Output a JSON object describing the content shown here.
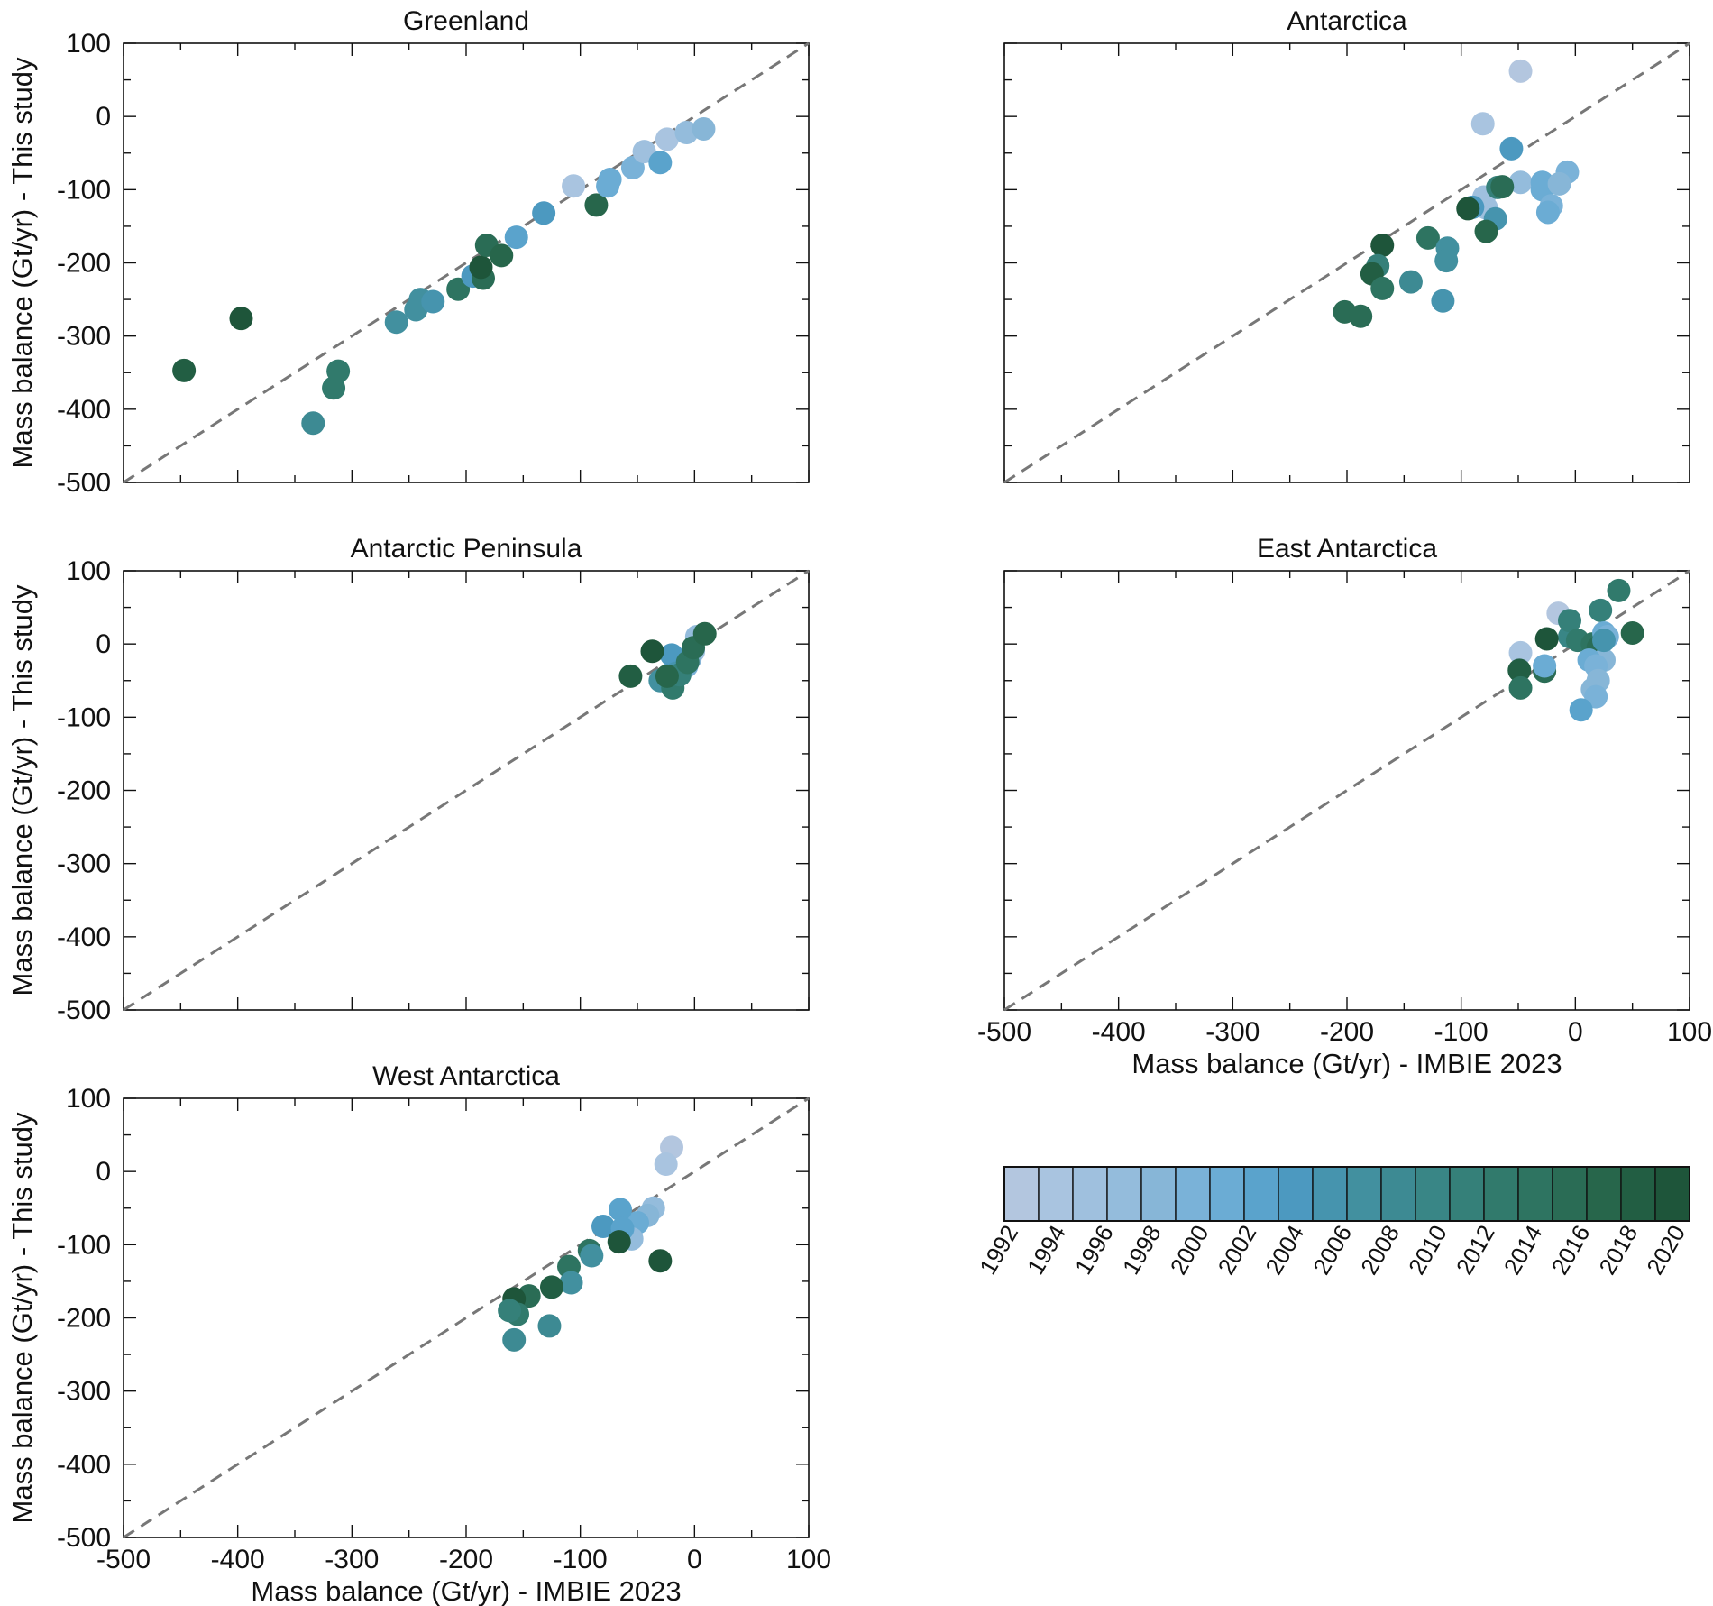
{
  "colormap": {
    "years": [
      "1992",
      "1994",
      "1996",
      "1998",
      "2000",
      "2002",
      "2004",
      "2006",
      "2008",
      "2010",
      "2012",
      "2014",
      "2016",
      "2018",
      "2020"
    ],
    "colors": [
      "#b3c6df",
      "#a9c4e0",
      "#9fc0de",
      "#94bcdc",
      "#87b6d7",
      "#7ab2d8",
      "#6bacd4",
      "#5aa3cc",
      "#4c99c0",
      "#4694ae",
      "#42909f",
      "#3d8a93",
      "#398686",
      "#358079",
      "#317a6c",
      "#2e7461",
      "#2a6c55",
      "#27664b",
      "#225e43",
      "#1e553a"
    ]
  },
  "chart_data": [
    {
      "type": "scatter",
      "title": "Greenland",
      "xlabel": "",
      "ylabel": "Mass balance (Gt/yr) - This study",
      "xlim": [
        -500,
        100
      ],
      "ylim": [
        -500,
        100
      ],
      "xticks": [],
      "yticks": [
        "100",
        "0",
        "-100",
        "-200",
        "-300",
        "-400",
        "-500"
      ],
      "reference_line": "1:1",
      "points": [
        {
          "x": -447,
          "y": -347,
          "c": 0.95
        },
        {
          "x": -397,
          "y": -276,
          "c": 1.0
        },
        {
          "x": -334,
          "y": -419,
          "c": 0.6
        },
        {
          "x": -316,
          "y": -371,
          "c": 0.72
        },
        {
          "x": -312,
          "y": -348,
          "c": 0.75
        },
        {
          "x": -261,
          "y": -281,
          "c": 0.55
        },
        {
          "x": -244,
          "y": -264,
          "c": 0.5
        },
        {
          "x": -240,
          "y": -250,
          "c": 0.5
        },
        {
          "x": -229,
          "y": -253,
          "c": 0.48
        },
        {
          "x": -207,
          "y": -236,
          "c": 0.78
        },
        {
          "x": -194,
          "y": -218,
          "c": 0.42
        },
        {
          "x": -185,
          "y": -221,
          "c": 0.85
        },
        {
          "x": -187,
          "y": -206,
          "c": 1.0
        },
        {
          "x": -182,
          "y": -176,
          "c": 0.82
        },
        {
          "x": -169,
          "y": -190,
          "c": 0.88
        },
        {
          "x": -156,
          "y": -165,
          "c": 0.38
        },
        {
          "x": -132,
          "y": -132,
          "c": 0.4
        },
        {
          "x": -106,
          "y": -95,
          "c": 0.05
        },
        {
          "x": -86,
          "y": -121,
          "c": 0.9
        },
        {
          "x": -76,
          "y": -95,
          "c": 0.3
        },
        {
          "x": -74,
          "y": -86,
          "c": 0.3
        },
        {
          "x": -54,
          "y": -70,
          "c": 0.25
        },
        {
          "x": -44,
          "y": -48,
          "c": 0.12
        },
        {
          "x": -30,
          "y": -63,
          "c": 0.35
        },
        {
          "x": -24,
          "y": -31,
          "c": 0.05
        },
        {
          "x": -7,
          "y": -22,
          "c": 0.15
        },
        {
          "x": 8,
          "y": -17,
          "c": 0.2
        }
      ]
    },
    {
      "type": "scatter",
      "title": "Antarctica",
      "xlabel": "",
      "ylabel": "",
      "xlim": [
        -500,
        100
      ],
      "ylim": [
        -500,
        100
      ],
      "xticks": [],
      "yticks": [],
      "reference_line": "1:1",
      "points": [
        {
          "x": -48,
          "y": 62,
          "c": 0.0
        },
        {
          "x": -81,
          "y": -10,
          "c": 0.05
        },
        {
          "x": -56,
          "y": -44,
          "c": 0.42
        },
        {
          "x": -48,
          "y": -90,
          "c": 0.15
        },
        {
          "x": -29,
          "y": -90,
          "c": 0.3
        },
        {
          "x": -29,
          "y": -100,
          "c": 0.33
        },
        {
          "x": -7,
          "y": -76,
          "c": 0.25
        },
        {
          "x": -14,
          "y": -92,
          "c": 0.2
        },
        {
          "x": -21,
          "y": -122,
          "c": 0.28
        },
        {
          "x": -24,
          "y": -131,
          "c": 0.3
        },
        {
          "x": -80,
          "y": -110,
          "c": 0.1
        },
        {
          "x": -78,
          "y": -125,
          "c": 0.12
        },
        {
          "x": -68,
          "y": -97,
          "c": 0.7
        },
        {
          "x": -64,
          "y": -96,
          "c": 0.85
        },
        {
          "x": -90,
          "y": -124,
          "c": 0.4
        },
        {
          "x": -70,
          "y": -140,
          "c": 0.45
        },
        {
          "x": -94,
          "y": -126,
          "c": 1.0
        },
        {
          "x": -78,
          "y": -157,
          "c": 0.92
        },
        {
          "x": -129,
          "y": -166,
          "c": 0.78
        },
        {
          "x": -112,
          "y": -180,
          "c": 0.55
        },
        {
          "x": -113,
          "y": -197,
          "c": 0.5
        },
        {
          "x": -116,
          "y": -252,
          "c": 0.45
        },
        {
          "x": -144,
          "y": -226,
          "c": 0.58
        },
        {
          "x": -169,
          "y": -176,
          "c": 1.0
        },
        {
          "x": -173,
          "y": -204,
          "c": 0.7
        },
        {
          "x": -178,
          "y": -215,
          "c": 0.95
        },
        {
          "x": -169,
          "y": -235,
          "c": 0.8
        },
        {
          "x": -202,
          "y": -267,
          "c": 0.82
        },
        {
          "x": -188,
          "y": -273,
          "c": 0.85
        }
      ]
    },
    {
      "type": "scatter",
      "title": "Antarctic Peninsula",
      "xlabel": "",
      "ylabel": "Mass balance (Gt/yr) - This study",
      "xlim": [
        -500,
        100
      ],
      "ylim": [
        -500,
        100
      ],
      "xticks": [],
      "yticks": [
        "100",
        "0",
        "-100",
        "-200",
        "-300",
        "-400",
        "-500"
      ],
      "reference_line": "1:1",
      "points": [
        {
          "x": -1,
          "y": -10,
          "c": 0.1
        },
        {
          "x": 2,
          "y": 10,
          "c": 0.15
        },
        {
          "x": -4,
          "y": -20,
          "c": 0.2
        },
        {
          "x": -7,
          "y": -30,
          "c": 0.25
        },
        {
          "x": -20,
          "y": -15,
          "c": 0.4
        },
        {
          "x": -16,
          "y": -40,
          "c": 0.45
        },
        {
          "x": -30,
          "y": -50,
          "c": 0.5
        },
        {
          "x": -19,
          "y": -60,
          "c": 0.75
        },
        {
          "x": -13,
          "y": -42,
          "c": 0.7
        },
        {
          "x": -6,
          "y": -25,
          "c": 0.8
        },
        {
          "x": -1,
          "y": -5,
          "c": 0.85
        },
        {
          "x": 9,
          "y": 14,
          "c": 0.88
        },
        {
          "x": -37,
          "y": -10,
          "c": 1.0
        },
        {
          "x": -56,
          "y": -44,
          "c": 0.95
        },
        {
          "x": -24,
          "y": -44,
          "c": 0.9
        }
      ]
    },
    {
      "type": "scatter",
      "title": "East Antarctica",
      "xlabel": "Mass balance (Gt/yr) - IMBIE 2023",
      "ylabel": "",
      "xlim": [
        -500,
        100
      ],
      "ylim": [
        -500,
        100
      ],
      "xticks": [
        "-500",
        "-400",
        "-300",
        "-200",
        "-100",
        "0",
        "100"
      ],
      "yticks": [],
      "reference_line": "1:1",
      "points": [
        {
          "x": -15,
          "y": 42,
          "c": 0.0
        },
        {
          "x": -48,
          "y": -12,
          "c": 0.05
        },
        {
          "x": -5,
          "y": 10,
          "c": 0.65
        },
        {
          "x": -5,
          "y": 32,
          "c": 0.7
        },
        {
          "x": 2,
          "y": 5,
          "c": 0.75
        },
        {
          "x": 15,
          "y": 0,
          "c": 0.8
        },
        {
          "x": 22,
          "y": 46,
          "c": 0.7
        },
        {
          "x": 38,
          "y": 73,
          "c": 0.72
        },
        {
          "x": 50,
          "y": 15,
          "c": 0.9
        },
        {
          "x": -25,
          "y": 7,
          "c": 1.0
        },
        {
          "x": -49,
          "y": -36,
          "c": 0.95
        },
        {
          "x": -48,
          "y": -60,
          "c": 0.8
        },
        {
          "x": -27,
          "y": -37,
          "c": 0.85
        },
        {
          "x": -27,
          "y": -30,
          "c": 0.3
        },
        {
          "x": 20,
          "y": -5,
          "c": 0.85
        },
        {
          "x": 25,
          "y": 15,
          "c": 0.3
        },
        {
          "x": 28,
          "y": 10,
          "c": 0.25
        },
        {
          "x": 25,
          "y": -22,
          "c": 0.2
        },
        {
          "x": 12,
          "y": -22,
          "c": 0.3
        },
        {
          "x": 18,
          "y": -30,
          "c": 0.25
        },
        {
          "x": 20,
          "y": -50,
          "c": 0.2
        },
        {
          "x": 15,
          "y": -62,
          "c": 0.2
        },
        {
          "x": 18,
          "y": -72,
          "c": 0.25
        },
        {
          "x": 5,
          "y": -90,
          "c": 0.35
        },
        {
          "x": 25,
          "y": 5,
          "c": 0.45
        }
      ]
    },
    {
      "type": "scatter",
      "title": "West Antarctica",
      "xlabel": "Mass balance (Gt/yr) - IMBIE 2023",
      "ylabel": "Mass balance (Gt/yr) - This study",
      "xlim": [
        -500,
        100
      ],
      "ylim": [
        -500,
        100
      ],
      "xticks": [
        "-500",
        "-400",
        "-300",
        "-200",
        "-100",
        "0",
        "100"
      ],
      "yticks": [
        "100",
        "0",
        "-100",
        "-200",
        "-300",
        "-400",
        "-500"
      ],
      "reference_line": "1:1",
      "points": [
        {
          "x": -20,
          "y": 33,
          "c": 0.0
        },
        {
          "x": -25,
          "y": 10,
          "c": 0.05
        },
        {
          "x": -36,
          "y": -50,
          "c": 0.15
        },
        {
          "x": -41,
          "y": -60,
          "c": 0.2
        },
        {
          "x": -50,
          "y": -70,
          "c": 0.3
        },
        {
          "x": -55,
          "y": -92,
          "c": 0.15
        },
        {
          "x": -65,
          "y": -52,
          "c": 0.35
        },
        {
          "x": -80,
          "y": -75,
          "c": 0.4
        },
        {
          "x": -63,
          "y": -78,
          "c": 0.35
        },
        {
          "x": -66,
          "y": -96,
          "c": 1.0
        },
        {
          "x": -92,
          "y": -108,
          "c": 0.8
        },
        {
          "x": -90,
          "y": -115,
          "c": 0.5
        },
        {
          "x": -110,
          "y": -130,
          "c": 0.8
        },
        {
          "x": -108,
          "y": -152,
          "c": 0.55
        },
        {
          "x": -125,
          "y": -158,
          "c": 0.95
        },
        {
          "x": -145,
          "y": -170,
          "c": 0.85
        },
        {
          "x": -158,
          "y": -174,
          "c": 1.0
        },
        {
          "x": -155,
          "y": -195,
          "c": 0.75
        },
        {
          "x": -162,
          "y": -190,
          "c": 0.7
        },
        {
          "x": -158,
          "y": -230,
          "c": 0.6
        },
        {
          "x": -127,
          "y": -211,
          "c": 0.6
        },
        {
          "x": -30,
          "y": -122,
          "c": 1.0
        }
      ]
    }
  ]
}
